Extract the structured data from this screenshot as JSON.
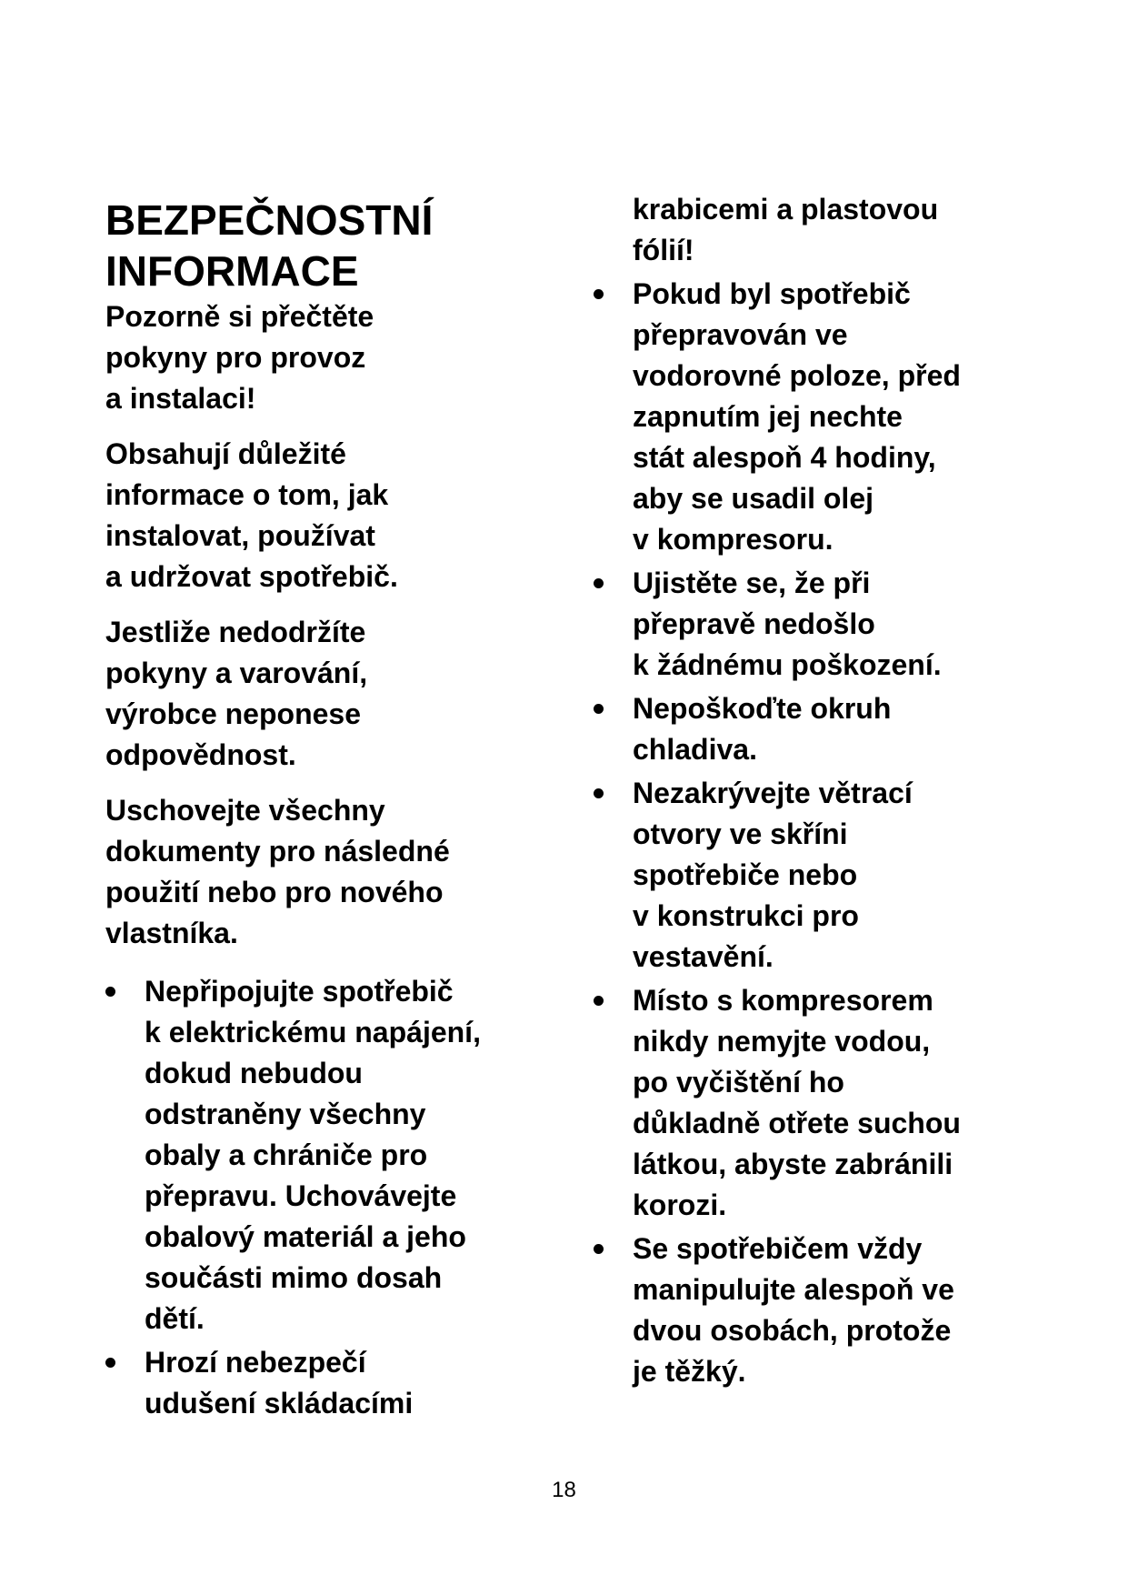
{
  "title": [
    "BEZPEČNOSTNÍ",
    "INFORMACE"
  ],
  "intro_paragraphs": [
    [
      "Pozorně si přečtěte",
      "pokyny  pro  provoz",
      "a instalaci!"
    ],
    [
      "Obsahují důležité",
      "informace o tom, jak",
      "instalovat,  používat",
      "a udržovat spotřebič."
    ],
    [
      "Jestliže nedodržíte",
      "pokyny a varování,",
      "výrobce  neponese",
      "odpovědnost."
    ],
    [
      "Uschovejte všechny",
      "dokumenty pro následné",
      "použití nebo pro nového",
      "vlastníka."
    ]
  ],
  "left_bullets": [
    [
      "Nepřipojujte spotřebič",
      "k elektrickému napájení,",
      "dokud nebudou",
      "odstraněny všechny",
      "obaly a chrániče pro",
      "přepravu. Uchovávejte",
      "obalový materiál a jeho",
      "součásti mimo dosah",
      "dětí."
    ],
    [
      "Hrozí nebezpečí",
      "udušení skládacími"
    ]
  ],
  "right_continuation": [
    "krabicemi a plastovou",
    "fólií!"
  ],
  "right_bullets": [
    [
      "Pokud byl spotřebič",
      "přepravován ve",
      "vodorovné poloze, před",
      "zapnutím jej  nechte",
      "stát alespoň 4 hodiny,",
      "aby se usadil olej",
      "v kompresoru."
    ],
    [
      "Ujistěte se, že při",
      "přepravě nedošlo",
      "k žádnému poškození."
    ],
    [
      "Nepoškoďte okruh",
      "chladiva."
    ],
    [
      "Nezakrývejte větrací",
      "otvory ve skříni",
      "spotřebiče nebo",
      "v konstrukci pro",
      "vestavění."
    ],
    [
      "Místo s kompresorem",
      "nikdy nemyjte vodou,",
      "po vyčištění ho",
      "důkladně otřete suchou",
      "látkou, abyste zabránili",
      "korozi."
    ],
    [
      "Se spotřebičem vždy",
      "manipulujte alespoň ve",
      "dvou osobách, protože",
      "je těžký."
    ]
  ],
  "page_number": "18"
}
